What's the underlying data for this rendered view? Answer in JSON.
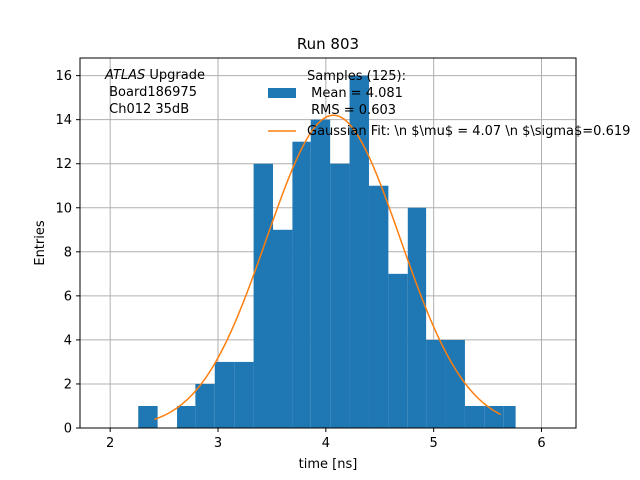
{
  "chart_data": {
    "type": "bar",
    "title": "Run 803",
    "xlabel": "time [ns]",
    "ylabel": "Entries",
    "xlim": [
      1.72,
      6.32
    ],
    "ylim": [
      0,
      16.8
    ],
    "xticks": [
      2,
      3,
      4,
      5,
      6
    ],
    "yticks": [
      0,
      2,
      4,
      6,
      8,
      10,
      12,
      14,
      16
    ],
    "grid": true,
    "annotation": {
      "italic": "ATLAS",
      "line1_rest": " Upgrade",
      "line2": " Board186975",
      "line3": " Ch012 35dB"
    },
    "bins": [
      {
        "x0": 2.26,
        "x1": 2.44,
        "y": 1
      },
      {
        "x0": 2.44,
        "x1": 2.62,
        "y": 0
      },
      {
        "x0": 2.62,
        "x1": 2.79,
        "y": 1
      },
      {
        "x0": 2.79,
        "x1": 2.97,
        "y": 2
      },
      {
        "x0": 2.97,
        "x1": 3.15,
        "y": 3
      },
      {
        "x0": 3.15,
        "x1": 3.33,
        "y": 3
      },
      {
        "x0": 3.33,
        "x1": 3.51,
        "y": 12
      },
      {
        "x0": 3.51,
        "x1": 3.69,
        "y": 9
      },
      {
        "x0": 3.69,
        "x1": 3.86,
        "y": 13
      },
      {
        "x0": 3.86,
        "x1": 4.04,
        "y": 14
      },
      {
        "x0": 4.04,
        "x1": 4.22,
        "y": 12
      },
      {
        "x0": 4.22,
        "x1": 4.4,
        "y": 16
      },
      {
        "x0": 4.4,
        "x1": 4.58,
        "y": 11
      },
      {
        "x0": 4.58,
        "x1": 4.76,
        "y": 7
      },
      {
        "x0": 4.76,
        "x1": 4.93,
        "y": 10
      },
      {
        "x0": 4.93,
        "x1": 5.11,
        "y": 4
      },
      {
        "x0": 5.11,
        "x1": 5.29,
        "y": 4
      },
      {
        "x0": 5.29,
        "x1": 5.47,
        "y": 1
      },
      {
        "x0": 5.47,
        "x1": 5.65,
        "y": 1
      },
      {
        "x0": 5.65,
        "x1": 5.76,
        "y": 1
      }
    ],
    "fit": {
      "type": "gaussian",
      "amplitude": 14.2,
      "mu": 4.07,
      "sigma": 0.619,
      "x_range": [
        2.41,
        5.62
      ]
    },
    "legend": {
      "placement": "top-right",
      "hist_label_lines": [
        "Samples (125):",
        " Mean = 4.081",
        " RMS = 0.603"
      ],
      "fit_label": "Gaussian Fit: \\n $\\mu$ = 4.07 \\n $\\sigma$=0.619"
    },
    "colors": {
      "hist": "#1f77b4",
      "fit": "#ff7f0e",
      "grid": "#b0b0b0"
    }
  }
}
